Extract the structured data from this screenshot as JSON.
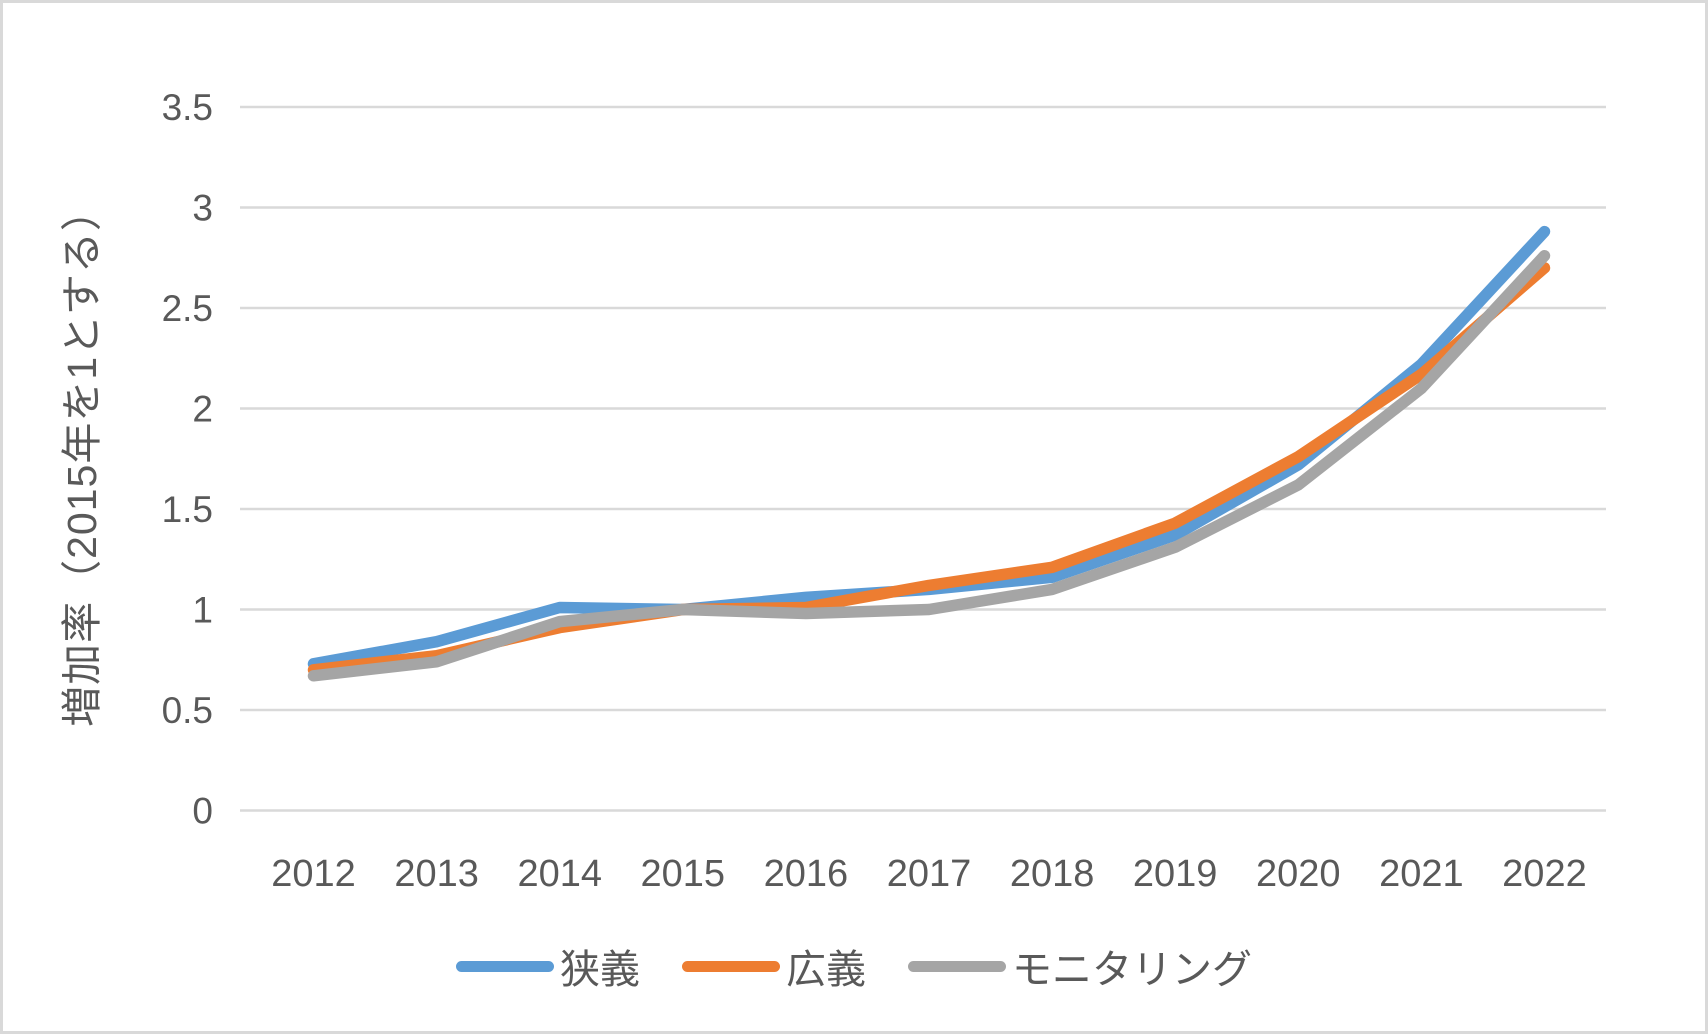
{
  "chart_data": {
    "type": "line",
    "title": "",
    "categories": [
      "2012",
      "2013",
      "2014",
      "2015",
      "2016",
      "2017",
      "2018",
      "2019",
      "2020",
      "2021",
      "2022"
    ],
    "series": [
      {
        "name": "狭義",
        "color": "#5B9BD5",
        "values": [
          0.73,
          0.84,
          1.01,
          1.0,
          1.06,
          1.1,
          1.16,
          1.37,
          1.72,
          2.22,
          2.88
        ]
      },
      {
        "name": "広義",
        "color": "#ED7D31",
        "values": [
          0.7,
          0.77,
          0.91,
          1.0,
          1.01,
          1.12,
          1.21,
          1.43,
          1.76,
          2.17,
          2.7
        ]
      },
      {
        "name": "モニタリング",
        "color": "#A5A5A5",
        "values": [
          0.67,
          0.74,
          0.94,
          1.0,
          0.98,
          1.0,
          1.1,
          1.31,
          1.62,
          2.1,
          2.76
        ]
      }
    ],
    "xlabel": "",
    "ylabel": "増加率（2015年を1とする）",
    "ylim": [
      0,
      3.5
    ],
    "ytick_step": 0.5,
    "yticks": [
      "0",
      "0.5",
      "1",
      "1.5",
      "2",
      "2.5",
      "3",
      "3.5"
    ],
    "grid": true,
    "legend_position": "bottom",
    "colors": {
      "background": "#FFFFFF",
      "gridline": "#D9D9D9",
      "axis_text": "#595959",
      "frame_border": "#D9D9D9"
    }
  }
}
